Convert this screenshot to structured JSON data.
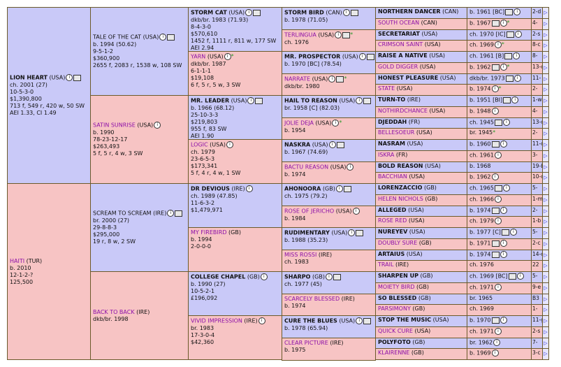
{
  "g1": [
    {
      "name": "LION HEART",
      "country": "(USA)",
      "icons": [
        "i",
        "bx"
      ],
      "lines": [
        "ch. 2001 (27)",
        "10-5-3-0",
        "$1,390,800",
        "713 f, 549 r, 420 w, 50 SW",
        "AEI 1.33, CI 1.49"
      ]
    },
    {
      "name": "HAITI",
      "country": "(TUR)",
      "icons": [],
      "lines": [
        "b. 2010",
        "12-1-2-?",
        "125,500"
      ]
    }
  ],
  "g2": [
    {
      "name": "TALE OF THE CAT",
      "country": "(USA)",
      "icons": [
        "i",
        "bx"
      ],
      "lines": [
        "b. 1994 (50.62)",
        "9-5-1-2",
        "$360,900",
        "2655 f, 2083 r, 1538 w, 108 SW"
      ]
    },
    {
      "name": "SATIN SUNRISE",
      "country": "(USA)",
      "icons": [
        "i"
      ],
      "lines": [
        "b. 1990",
        "78-23-12-17",
        "$263,493",
        "5 f, 5 r, 4 w, 3 SW"
      ]
    },
    {
      "name": "SCREAM TO SCREAM",
      "country": "(IRE)",
      "icons": [
        "i",
        "bx"
      ],
      "lines": [
        "br. 2000 (27)",
        "29-8-8-3",
        "$295,000",
        "19 r, 8 w, 2 SW"
      ]
    },
    {
      "name": "BACK TO BACK",
      "country": "(IRE)",
      "icons": [],
      "lines": [
        "dkb/br. 1998"
      ]
    }
  ],
  "g3": [
    {
      "name": "STORM CAT",
      "country": "(USA)",
      "icons": [
        "i",
        "bx"
      ],
      "lines": [
        "dkb/br. 1983 (71.93)",
        "8-4-3-0",
        "$570,610",
        "1452 f, 1111 r, 811 w, 177 SW",
        "AEI 2.94"
      ]
    },
    {
      "name": "YARN",
      "country": "(USA)",
      "icons": [
        "i"
      ],
      "star": true,
      "lines": [
        "dkb/br. 1987",
        "6-1-1-1",
        "$19,108",
        "6 f, 5 r, 5 w, 3 SW"
      ]
    },
    {
      "name": "MR. LEADER",
      "country": "(USA)",
      "icons": [
        "i",
        "bx"
      ],
      "lines": [
        "b. 1966 (68.12)",
        "25-10-3-3",
        "$219,803",
        "955 f, 83 SW",
        "AEI 1.90"
      ]
    },
    {
      "name": "LOGIC",
      "country": "(USA)",
      "icons": [
        "i"
      ],
      "lines": [
        "ch. 1979",
        "23-6-5-3",
        "$173,341",
        "5 f, 4 r, 4 w, 1 SW"
      ]
    },
    {
      "name": "DR DEVIOUS",
      "country": "(IRE)",
      "icons": [
        "i"
      ],
      "lines": [
        "ch. 1989 (47.85)",
        "11-6-3-2",
        "$1,479,971"
      ]
    },
    {
      "name": "MY FIREBIRD",
      "country": "(GB)",
      "icons": [],
      "lines": [
        "b. 1994",
        "2-0-0-0"
      ]
    },
    {
      "name": "COLLEGE CHAPEL",
      "country": "(GB)",
      "icons": [
        "i"
      ],
      "lines": [
        "b. 1990 (27)",
        "10-5-2-1",
        "£196,092"
      ]
    },
    {
      "name": "VIVID IMPRESSION",
      "country": "(IRE)",
      "icons": [
        "i"
      ],
      "lines": [
        "br. 1983",
        "17-3-0-4",
        "$42,360"
      ]
    }
  ],
  "g4": [
    {
      "name": "STORM BIRD",
      "country": "(CAN)",
      "icons": [
        "i",
        "bx"
      ],
      "lines": [
        "b. 1978 (71.05)"
      ]
    },
    {
      "name": "TERLINGUA",
      "country": "(USA)",
      "icons": [
        "i",
        "bx"
      ],
      "star": true,
      "lines": [
        "ch. 1976"
      ]
    },
    {
      "name": "MR. PROSPECTOR",
      "country": "(USA)",
      "icons": [
        "i",
        "bx"
      ],
      "lines": [
        "b. 1970 [BC] (78.54)"
      ]
    },
    {
      "name": "NARRATE",
      "country": "(USA)",
      "icons": [
        "i",
        "bx"
      ],
      "star": true,
      "lines": [
        "dkb/br. 1980"
      ]
    },
    {
      "name": "HAIL TO REASON",
      "country": "(USA)",
      "icons": [
        "i",
        "bx"
      ],
      "lines": [
        "br. 1958 [C] (82.03)"
      ]
    },
    {
      "name": "JOLIE DEJA",
      "country": "(USA)",
      "icons": [
        "i"
      ],
      "star": true,
      "lines": [
        "b. 1954"
      ]
    },
    {
      "name": "NASKRA",
      "country": "(USA)",
      "icons": [
        "i",
        "bx"
      ],
      "lines": [
        "b. 1967 (74.69)"
      ]
    },
    {
      "name": "BACTU REASON",
      "country": "(USA)",
      "icons": [
        "i"
      ],
      "lines": [
        "b. 1974"
      ]
    },
    {
      "name": "AHONOORA",
      "country": "(GB)",
      "icons": [
        "i",
        "bx"
      ],
      "lines": [
        "ch. 1975 (79.2)"
      ]
    },
    {
      "name": "ROSE OF JERICHO",
      "country": "(USA)",
      "icons": [
        "i"
      ],
      "lines": [
        "b. 1984"
      ]
    },
    {
      "name": "RUDIMENTARY",
      "country": "(USA)",
      "icons": [
        "i",
        "bx"
      ],
      "lines": [
        "b. 1988 (35.23)"
      ]
    },
    {
      "name": "MISS ROSSI",
      "country": "(IRE)",
      "icons": [],
      "lines": [
        "ch. 1983"
      ]
    },
    {
      "name": "SHARPO",
      "country": "(GB)",
      "icons": [
        "i",
        "bx"
      ],
      "lines": [
        "ch. 1977 (45)"
      ]
    },
    {
      "name": "SCARCELY BLESSED",
      "country": "(IRE)",
      "icons": [],
      "lines": [
        "b. 1974"
      ]
    },
    {
      "name": "CURE THE BLUES",
      "country": "(USA)",
      "icons": [
        "i",
        "bx"
      ],
      "lines": [
        "b. 1978 (65.94)"
      ]
    },
    {
      "name": "CLEAR PICTURE",
      "country": "(IRE)",
      "icons": [],
      "lines": [
        "b. 1975"
      ]
    }
  ],
  "g5": [
    {
      "name": "NORTHERN DANCER",
      "country": "(CAN)",
      "info": "b. 1961 [BC]",
      "icons": [
        "bx",
        "i"
      ],
      "count": "2-d"
    },
    {
      "name": "SOUTH OCEAN",
      "country": "(CAN)",
      "info": "b. 1967",
      "icons": [
        "bx",
        "i"
      ],
      "star": true,
      "count": "4-"
    },
    {
      "name": "SECRETARIAT",
      "country": "(USA)",
      "info": "ch. 1970 [IC]",
      "icons": [
        "bx",
        "i"
      ],
      "count": "2-s"
    },
    {
      "name": "CRIMSON SAINT",
      "country": "(USA)",
      "info": "ch. 1969",
      "icons": [
        "i"
      ],
      "star": true,
      "count": "8-c"
    },
    {
      "name": "RAISE A NATIVE",
      "country": "(USA)",
      "info": "ch. 1961 [B]",
      "icons": [
        "bx",
        "i"
      ],
      "count": "8-"
    },
    {
      "name": "GOLD DIGGER",
      "country": "(USA)",
      "info": "b. 1962",
      "icons": [
        "bx",
        "i"
      ],
      "star": true,
      "count": "13-c"
    },
    {
      "name": "HONEST PLEASURE",
      "country": "(USA)",
      "info": "dkb/br. 1973",
      "icons": [
        "bx",
        "i"
      ],
      "count": "11-"
    },
    {
      "name": "STATE",
      "country": "(USA)",
      "info": "b. 1974",
      "icons": [
        "i"
      ],
      "star": true,
      "count": "2-"
    },
    {
      "name": "TURN-TO",
      "country": "(IRE)",
      "info": "b. 1951 [BI]",
      "icons": [
        "bx",
        "i"
      ],
      "count": "1-w"
    },
    {
      "name": "NOTHIRDCHANCE",
      "country": "(USA)",
      "info": "b. 1948",
      "icons": [
        "i"
      ],
      "count": "4-"
    },
    {
      "name": "DJEDDAH",
      "country": "(FR)",
      "info": "ch. 1945",
      "icons": [
        "bx",
        "i"
      ],
      "count": "13-c"
    },
    {
      "name": "BELLESOEUR",
      "country": "(USA)",
      "info": "br. 1945",
      "icons": [],
      "star": true,
      "count": "2-"
    },
    {
      "name": "NASRAM",
      "country": "(USA)",
      "info": "b. 1960",
      "icons": [
        "bx",
        "i"
      ],
      "count": "11-d"
    },
    {
      "name": "ISKRA",
      "country": "(FR)",
      "info": "ch. 1961",
      "icons": [
        "i"
      ],
      "count": "3-"
    },
    {
      "name": "BOLD REASON",
      "country": "(USA)",
      "info": "b. 1968",
      "icons": [],
      "count": "19-b"
    },
    {
      "name": "BACCHIAN",
      "country": "(USA)",
      "info": "b. 1962",
      "icons": [
        "i"
      ],
      "count": "10-c"
    },
    {
      "name": "LORENZACCIO",
      "country": "(GB)",
      "info": "ch. 1965",
      "icons": [
        "bx",
        "i"
      ],
      "count": "5-"
    },
    {
      "name": "HELEN NICHOLS",
      "country": "(GB)",
      "info": "ch. 1966",
      "icons": [
        "i"
      ],
      "count": "1-m"
    },
    {
      "name": "ALLEGED",
      "country": "(USA)",
      "info": "b. 1974",
      "icons": [
        "bx",
        "i"
      ],
      "count": "2-"
    },
    {
      "name": "ROSE RED",
      "country": "(USA)",
      "info": "ch. 1979",
      "icons": [
        "i"
      ],
      "count": "1-b"
    },
    {
      "name": "NUREYEV",
      "country": "(USA)",
      "info": "b. 1977 [C]",
      "icons": [
        "bx",
        "i"
      ],
      "count": "5-"
    },
    {
      "name": "DOUBLY SURE",
      "country": "(GB)",
      "info": "b. 1971",
      "icons": [
        "bx",
        "i"
      ],
      "count": "2-c"
    },
    {
      "name": "ARTAIUS",
      "country": "(USA)",
      "info": "b. 1974",
      "icons": [
        "bx",
        "i"
      ],
      "count": "14-c"
    },
    {
      "name": "TRAIL",
      "country": "(IRE)",
      "info": "ch. 1976",
      "icons": [],
      "count": "22"
    },
    {
      "name": "SHARPEN UP",
      "country": "(GB)",
      "info": "ch. 1969 [BC]",
      "icons": [
        "bx",
        "i"
      ],
      "count": "5-"
    },
    {
      "name": "MOIETY BIRD",
      "country": "(GB)",
      "info": "ch. 1971",
      "icons": [
        "i"
      ],
      "count": "9-e"
    },
    {
      "name": "SO BLESSED",
      "country": "(GB)",
      "info": "br. 1965",
      "icons": [],
      "count": "B3"
    },
    {
      "name": "PARSIMONY",
      "country": "(GB)",
      "info": "ch. 1969",
      "icons": [],
      "count": "1-"
    },
    {
      "name": "STOP THE MUSIC",
      "country": "(USA)",
      "info": "b. 1970",
      "icons": [
        "bx",
        "i"
      ],
      "count": "11-g"
    },
    {
      "name": "QUICK CURE",
      "country": "(USA)",
      "info": "ch. 1971",
      "icons": [
        "i"
      ],
      "count": "2-s"
    },
    {
      "name": "POLYFOTO",
      "country": "(GB)",
      "info": "br. 1962",
      "icons": [
        "i"
      ],
      "count": "7-"
    },
    {
      "name": "KLAIRENNE",
      "country": "(GB)",
      "info": "b. 1969",
      "icons": [
        "i"
      ],
      "count": "3-c"
    }
  ],
  "more_glyph": "▷",
  "colors": {
    "male_bg": "#c9c9f8",
    "female_bg": "#f7c4c4",
    "female_name": "#8c0fa8",
    "star": "#2a9a2a"
  }
}
